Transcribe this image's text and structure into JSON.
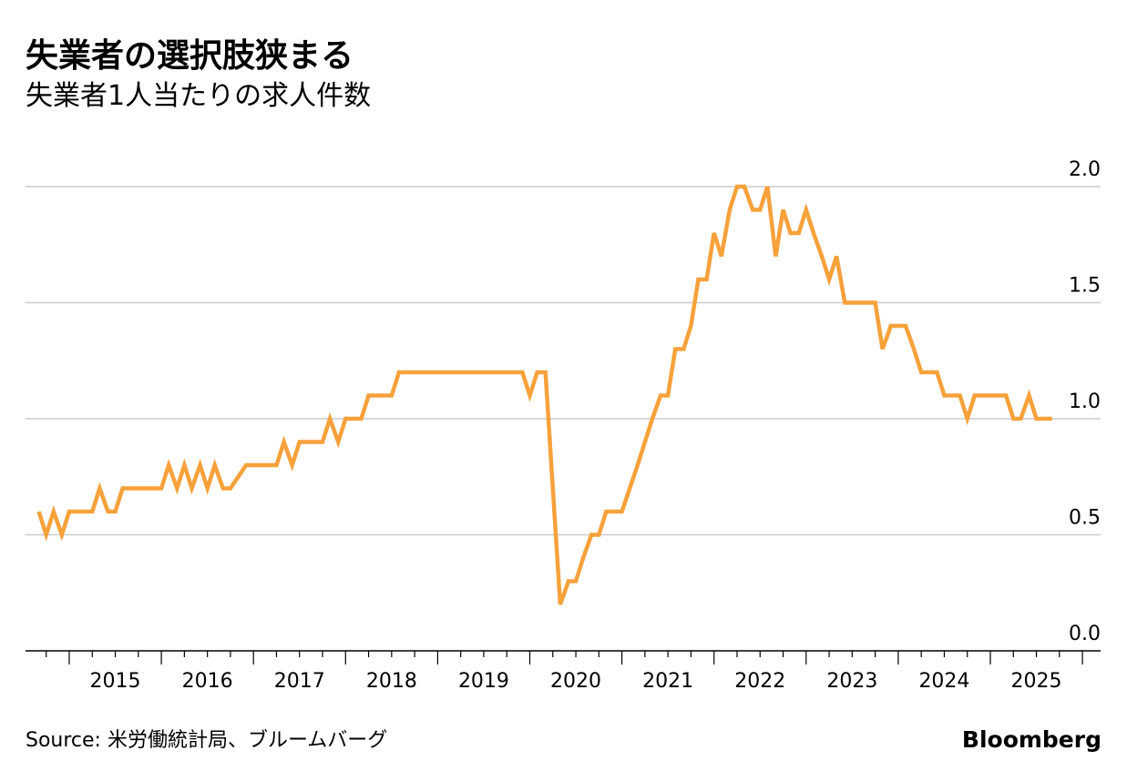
{
  "header": {
    "title": "失業者の選択肢狭まる",
    "subtitle": "失業者1人当たりの求人件数"
  },
  "footer": {
    "source": "Source: 米労働統計局、ブルームバーグ",
    "brand": "Bloomberg"
  },
  "colors": {
    "line": "#F7A13B",
    "grid": "#cccccc",
    "axis": "#000000",
    "text": "#000000"
  },
  "chart_data": {
    "type": "line",
    "title": "失業者の選択肢狭まる",
    "subtitle": "失業者1人当たりの求人件数",
    "xlabel": "",
    "ylabel": "",
    "ylim": [
      0,
      2.0
    ],
    "xlim": [
      2014.55,
      2026.0
    ],
    "yticks": [
      0.0,
      0.5,
      1.0,
      1.5,
      2.0
    ],
    "ytick_labels": [
      "0.0",
      "0.5",
      "1.0",
      "1.5",
      "2.0"
    ],
    "xticks": [
      2015,
      2016,
      2017,
      2018,
      2019,
      2020,
      2021,
      2022,
      2023,
      2024,
      2025
    ],
    "xtick_labels": [
      "2015",
      "2016",
      "2017",
      "2018",
      "2019",
      "2020",
      "2021",
      "2022",
      "2023",
      "2024",
      "2025"
    ],
    "grid": true,
    "y_axis_side": "right",
    "legend": "none",
    "series": [
      {
        "color": "#F7A13B",
        "x": [
          2014.67,
          2014.75,
          2014.83,
          2014.92,
          2015.0,
          2015.25,
          2015.33,
          2015.42,
          2015.5,
          2015.58,
          2016.0,
          2016.08,
          2016.17,
          2016.25,
          2016.33,
          2016.42,
          2016.5,
          2016.58,
          2016.67,
          2016.75,
          2016.92,
          2017.0,
          2017.25,
          2017.33,
          2017.42,
          2017.5,
          2017.75,
          2017.83,
          2017.92,
          2018.0,
          2018.17,
          2018.25,
          2018.5,
          2018.58,
          2019.92,
          2020.0,
          2020.08,
          2020.17,
          2020.33,
          2020.42,
          2020.5,
          2020.58,
          2020.67,
          2020.75,
          2020.83,
          2021.0,
          2021.17,
          2021.33,
          2021.42,
          2021.5,
          2021.58,
          2021.67,
          2021.75,
          2021.83,
          2021.92,
          2022.0,
          2022.08,
          2022.17,
          2022.25,
          2022.33,
          2022.42,
          2022.5,
          2022.58,
          2022.67,
          2022.75,
          2022.83,
          2022.92,
          2023.0,
          2023.08,
          2023.17,
          2023.25,
          2023.33,
          2023.42,
          2023.5,
          2023.75,
          2023.83,
          2023.92,
          2024.08,
          2024.17,
          2024.25,
          2024.42,
          2024.5,
          2024.67,
          2024.75,
          2024.83,
          2025.17,
          2025.25,
          2025.33,
          2025.42,
          2025.5,
          2025.67
        ]
      }
    ],
    "values": [
      0.6,
      0.5,
      0.6,
      0.5,
      0.6,
      0.6,
      0.7,
      0.6,
      0.6,
      0.7,
      0.7,
      0.8,
      0.7,
      0.8,
      0.7,
      0.8,
      0.7,
      0.8,
      0.7,
      0.7,
      0.8,
      0.8,
      0.8,
      0.9,
      0.8,
      0.9,
      0.9,
      1.0,
      0.9,
      1.0,
      1.0,
      1.1,
      1.1,
      1.2,
      1.2,
      1.1,
      1.2,
      1.2,
      0.2,
      0.3,
      0.3,
      0.4,
      0.5,
      0.5,
      0.6,
      0.6,
      0.8,
      1.0,
      1.1,
      1.1,
      1.3,
      1.3,
      1.4,
      1.6,
      1.6,
      1.8,
      1.7,
      1.9,
      2.0,
      2.0,
      1.9,
      1.9,
      2.0,
      1.7,
      1.9,
      1.8,
      1.8,
      1.9,
      1.8,
      1.7,
      1.6,
      1.7,
      1.5,
      1.5,
      1.5,
      1.3,
      1.4,
      1.4,
      1.3,
      1.2,
      1.2,
      1.1,
      1.1,
      1.0,
      1.1,
      1.1,
      1.0,
      1.0,
      1.1,
      1.0,
      1.0
    ]
  }
}
